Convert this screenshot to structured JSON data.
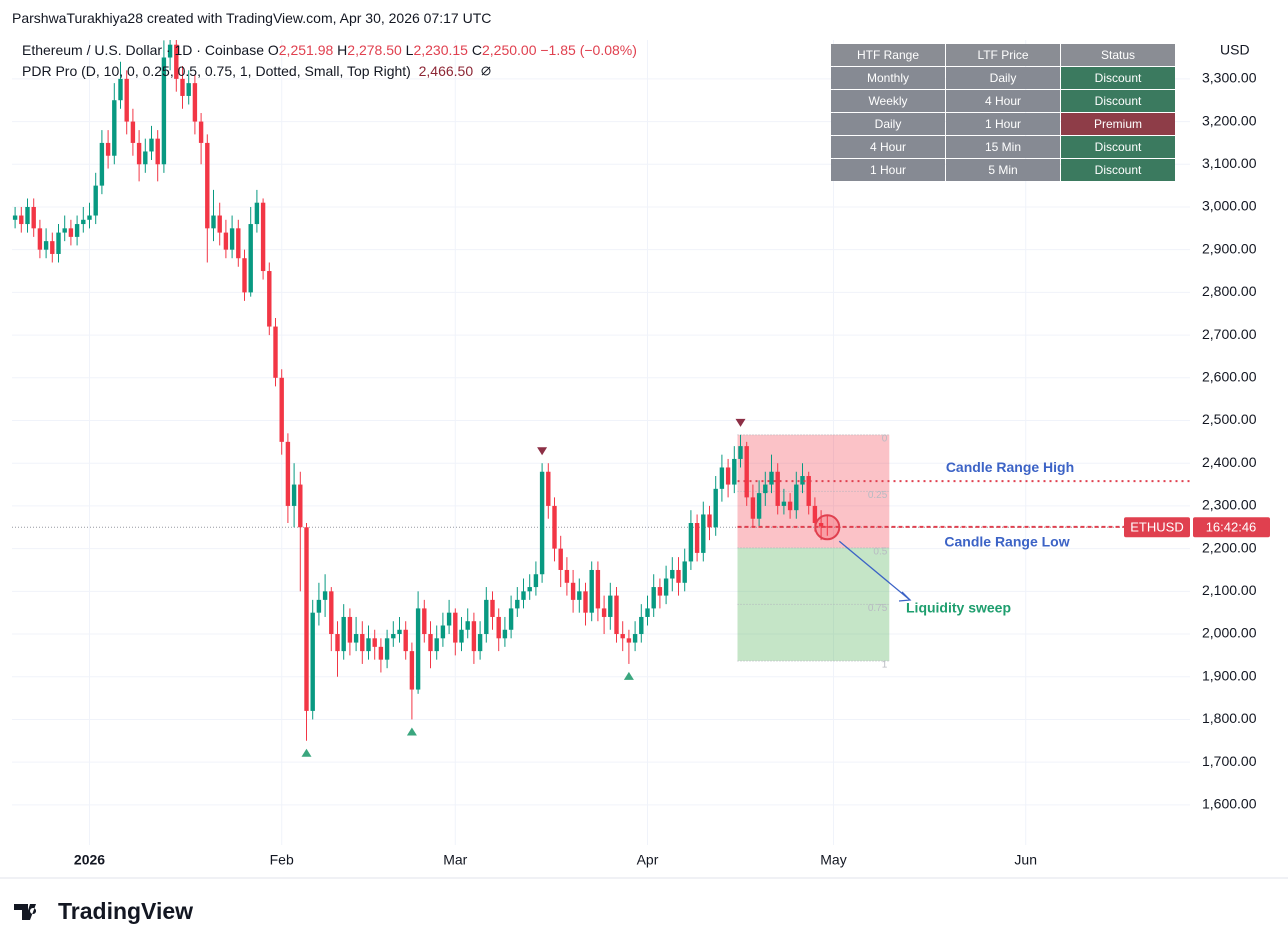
{
  "chart_data": {
    "type": "candlestick",
    "credit": "ParshwaTurakhiya28 created with TradingView.com, Apr 30, 2026 07:17 UTC",
    "symbol": "Ethereum / U.S. Dollar · 1D · Coinbase",
    "ohlc_labels": [
      [
        "O",
        "2,251.98"
      ],
      [
        "H",
        "2,278.50"
      ],
      [
        "L",
        "2,230.15"
      ],
      [
        "C",
        "2,250.00"
      ]
    ],
    "change": "−1.85 (−0.08%)",
    "indicator": "PDR Pro (D, 10, 0, 0.25, 0.5, 0.75, 1, Dotted, Small, Top Right)",
    "indicator_value": "2,466.50",
    "currency": "USD",
    "up_color": "#089981",
    "down_color": "#f23645",
    "x": [
      -11,
      -10,
      -9,
      -8,
      -7,
      -6,
      -5,
      -4,
      -3,
      -2,
      -1,
      0,
      1,
      2,
      3,
      4,
      5,
      6,
      7,
      8,
      9,
      10,
      11,
      12,
      13,
      14,
      15,
      16,
      17,
      18,
      19,
      20,
      21,
      22,
      23,
      24,
      25,
      26,
      27,
      28,
      29,
      30,
      31,
      32,
      33,
      34,
      35,
      36,
      37,
      38,
      39,
      40,
      41,
      42,
      43,
      44,
      45,
      46,
      47,
      48,
      49,
      50,
      51,
      52,
      53,
      54,
      55,
      56,
      57,
      58,
      59,
      60,
      61,
      62,
      63,
      64,
      65,
      66,
      67,
      68,
      69,
      70,
      71,
      72,
      73,
      74,
      75,
      76,
      77,
      78,
      79,
      80,
      81,
      82,
      83,
      84,
      85,
      86,
      87,
      88,
      89,
      90,
      91,
      92,
      93,
      94,
      95,
      96,
      97,
      98,
      99,
      100,
      101,
      102,
      103,
      104,
      105,
      106,
      107,
      108,
      109,
      110,
      111,
      112,
      113,
      114,
      115,
      116,
      117,
      118,
      119,
      120
    ],
    "open": [
      2970,
      2980,
      2960,
      3000,
      2950,
      2900,
      2920,
      2890,
      2940,
      2950,
      2930,
      2960,
      2970,
      2980,
      3050,
      3150,
      3120,
      3250,
      3300,
      3200,
      3150,
      3100,
      3130,
      3160,
      3100,
      3350,
      3380,
      3300,
      3260,
      3290,
      3200,
      3150,
      2950,
      2980,
      2940,
      2900,
      2950,
      2880,
      2800,
      2960,
      3010,
      2850,
      2720,
      2600,
      2450,
      2300,
      2350,
      2250,
      1820,
      2050,
      2080,
      2100,
      2000,
      1960,
      2040,
      1980,
      2000,
      1960,
      1990,
      1970,
      1940,
      1990,
      2000,
      2010,
      1960,
      1870,
      2060,
      2000,
      1960,
      1990,
      2020,
      2050,
      1980,
      2010,
      2030,
      1960,
      2000,
      2080,
      2040,
      1990,
      2010,
      2060,
      2080,
      2100,
      2110,
      2140,
      2380,
      2300,
      2200,
      2150,
      2120,
      2080,
      2100,
      2050,
      2150,
      2060,
      2040,
      2090,
      2000,
      1990,
      1980,
      2000,
      2040,
      2060,
      2110,
      2090,
      2130,
      2150,
      2120,
      2170,
      2260,
      2190,
      2280,
      2250,
      2340,
      2390,
      2350,
      2410,
      2440,
      2320,
      2270,
      2330,
      2350,
      2380,
      2300,
      2310,
      2290,
      2350,
      2370,
      2300,
      2260,
      2251.98
    ],
    "high": [
      3000,
      3000,
      3020,
      3020,
      2970,
      2950,
      2940,
      2960,
      2980,
      2970,
      2980,
      3000,
      3010,
      3080,
      3180,
      3180,
      3290,
      3340,
      3320,
      3230,
      3180,
      3160,
      3190,
      3180,
      3390,
      3420,
      3400,
      3330,
      3320,
      3310,
      3220,
      3170,
      3040,
      3010,
      2970,
      2980,
      2970,
      2900,
      3000,
      3040,
      3020,
      2870,
      2740,
      2620,
      2470,
      2400,
      2380,
      2260,
      2080,
      2120,
      2140,
      2110,
      2030,
      2070,
      2060,
      2040,
      2030,
      2020,
      2010,
      1990,
      2010,
      2030,
      2040,
      2030,
      1980,
      2100,
      2080,
      2030,
      2020,
      2050,
      2080,
      2060,
      2040,
      2060,
      2050,
      2030,
      2110,
      2100,
      2060,
      2040,
      2090,
      2110,
      2130,
      2140,
      2170,
      2400,
      2400,
      2320,
      2230,
      2180,
      2150,
      2130,
      2120,
      2170,
      2170,
      2090,
      2120,
      2110,
      2030,
      2010,
      2030,
      2070,
      2090,
      2140,
      2130,
      2160,
      2180,
      2180,
      2200,
      2290,
      2280,
      2310,
      2300,
      2370,
      2420,
      2410,
      2440,
      2466.5,
      2450,
      2350,
      2360,
      2380,
      2420,
      2400,
      2340,
      2330,
      2380,
      2400,
      2380,
      2320,
      2290,
      2278.5
    ],
    "low": [
      2950,
      2940,
      2940,
      2930,
      2880,
      2880,
      2870,
      2870,
      2920,
      2910,
      2910,
      2940,
      2950,
      2960,
      3030,
      3090,
      3100,
      3230,
      3170,
      3120,
      3060,
      3080,
      3110,
      3060,
      3080,
      3320,
      3270,
      3230,
      3240,
      3170,
      3100,
      2870,
      2920,
      2910,
      2880,
      2880,
      2860,
      2780,
      2790,
      2940,
      2830,
      2700,
      2580,
      2420,
      2260,
      2250,
      2100,
      1750,
      1800,
      2020,
      2040,
      1960,
      1900,
      1940,
      1950,
      1960,
      1930,
      1940,
      1940,
      1910,
      1920,
      1970,
      1980,
      1940,
      1800,
      1860,
      1980,
      1920,
      1940,
      1970,
      2000,
      1950,
      1960,
      1990,
      1930,
      1940,
      1980,
      2010,
      1960,
      1970,
      1990,
      2040,
      2060,
      2080,
      2090,
      2120,
      2270,
      2170,
      2110,
      2090,
      2050,
      2050,
      2020,
      2030,
      2030,
      2000,
      2010,
      1980,
      1960,
      1930,
      1960,
      1980,
      2020,
      2040,
      2060,
      2070,
      2100,
      2090,
      2100,
      2150,
      2170,
      2170,
      2220,
      2230,
      2310,
      2320,
      2330,
      2390,
      2300,
      2250,
      2250,
      2300,
      2330,
      2280,
      2280,
      2270,
      2270,
      2330,
      2280,
      2240,
      2220,
      2230.15
    ],
    "close": [
      2980,
      2960,
      3000,
      2950,
      2900,
      2920,
      2890,
      2940,
      2950,
      2930,
      2960,
      2970,
      2980,
      3050,
      3150,
      3120,
      3250,
      3300,
      3200,
      3150,
      3100,
      3130,
      3160,
      3100,
      3350,
      3380,
      3300,
      3260,
      3290,
      3200,
      3150,
      2950,
      2980,
      2940,
      2900,
      2950,
      2880,
      2800,
      2960,
      3010,
      2850,
      2720,
      2600,
      2450,
      2300,
      2350,
      2250,
      1820,
      2050,
      2080,
      2100,
      2000,
      1960,
      2040,
      1980,
      2000,
      1960,
      1990,
      1970,
      1940,
      1990,
      2000,
      2010,
      1960,
      1870,
      2060,
      2000,
      1960,
      1990,
      2020,
      2050,
      1980,
      2010,
      2030,
      1960,
      2000,
      2080,
      2040,
      1990,
      2010,
      2060,
      2080,
      2100,
      2110,
      2140,
      2380,
      2300,
      2200,
      2150,
      2120,
      2080,
      2100,
      2050,
      2150,
      2060,
      2040,
      2090,
      2000,
      1990,
      1980,
      2000,
      2040,
      2060,
      2110,
      2090,
      2130,
      2150,
      2120,
      2170,
      2260,
      2190,
      2280,
      2250,
      2340,
      2390,
      2350,
      2410,
      2440,
      2320,
      2270,
      2330,
      2350,
      2380,
      2300,
      2310,
      2290,
      2350,
      2370,
      2300,
      2260,
      2251.85,
      2250
    ],
    "pivot_highs": {
      "x": [
        74,
        106
      ],
      "values": [
        2400,
        2466.5
      ]
    },
    "pivot_lows": {
      "x": [
        36,
        53,
        88
      ],
      "values": [
        1750,
        1800,
        1930
      ]
    },
    "pdr": {
      "x_start": 106,
      "x_end": 130,
      "top": 2466.5,
      "bottom": 1937,
      "levels": [
        0,
        0.25,
        0.5,
        0.75,
        1
      ]
    },
    "range_high": {
      "text": "Candle Range High",
      "value": 2358
    },
    "range_low": {
      "text": "Candle Range Low",
      "value": 2251
    },
    "sweep_text": "Liquidity sweep",
    "price_tag": {
      "symbol": "ETHUSD",
      "countdown": "16:42:46"
    },
    "xlim": [
      -11.5,
      178.5
    ],
    "xticks": [
      {
        "value": 1,
        "label": "2026"
      },
      {
        "value": 32,
        "label": "Feb"
      },
      {
        "value": 60,
        "label": "Mar"
      },
      {
        "value": 91,
        "label": "Apr"
      },
      {
        "value": 121,
        "label": "May"
      },
      {
        "value": 152,
        "label": "Jun"
      }
    ],
    "ylim": [
      1506,
      3391
    ],
    "yticks": [
      {
        "value": 1600,
        "label": "1,600.00"
      },
      {
        "value": 1700,
        "label": "1,700.00"
      },
      {
        "value": 1800,
        "label": "1,800.00"
      },
      {
        "value": 1900,
        "label": "1,900.00"
      },
      {
        "value": 2000,
        "label": "2,000.00"
      },
      {
        "value": 2100,
        "label": "2,100.00"
      },
      {
        "value": 2200,
        "label": "2,200.00"
      },
      {
        "value": 2300,
        "label": "2,300.00"
      },
      {
        "value": 2400,
        "label": "2,400.00"
      },
      {
        "value": 2500,
        "label": "2,500.00"
      },
      {
        "value": 2600,
        "label": "2,600.00"
      },
      {
        "value": 2700,
        "label": "2,700.00"
      },
      {
        "value": 2800,
        "label": "2,800.00"
      },
      {
        "value": 2900,
        "label": "2,900.00"
      },
      {
        "value": 3000,
        "label": "3,000.00"
      },
      {
        "value": 3100,
        "label": "3,100.00"
      },
      {
        "value": 3200,
        "label": "3,200.00"
      },
      {
        "value": 3300,
        "label": "3,300.00"
      }
    ],
    "grid": true,
    "table": {
      "header": [
        "HTF Range",
        "LTF Price",
        "Status"
      ],
      "rows": [
        [
          "Monthly",
          "Daily",
          "Discount"
        ],
        [
          "Weekly",
          "4 Hour",
          "Discount"
        ],
        [
          "Daily",
          "1 Hour",
          "Premium"
        ],
        [
          "4 Hour",
          "15 Min",
          "Discount"
        ],
        [
          "1 Hour",
          "5 Min",
          "Discount"
        ]
      ]
    },
    "logo": "TradingView"
  }
}
